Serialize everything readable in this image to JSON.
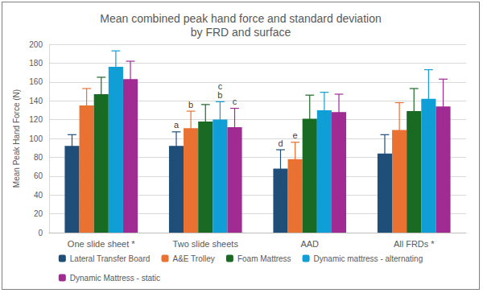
{
  "chart_data": {
    "type": "bar",
    "title": "Mean combined peak hand force and standard deviation\nby FRD and surface",
    "y_label": "Mean Peak Hand Force (N)",
    "categories": [
      "One slide sheet *",
      "Two slide sheets",
      "AAD",
      "All FRDs *"
    ],
    "series": [
      {
        "name": "Lateral Transfer Board",
        "color": "#1f4e79",
        "values": [
          92,
          92,
          68,
          84
        ],
        "errors": [
          12,
          15,
          20,
          20
        ]
      },
      {
        "name": "A&E Trolley",
        "color": "#e97132",
        "values": [
          135,
          111,
          78,
          109
        ],
        "errors": [
          18,
          18,
          18,
          29
        ]
      },
      {
        "name": "Foam Mattress",
        "color": "#196b24",
        "values": [
          147,
          118,
          121,
          129
        ],
        "errors": [
          18,
          18,
          25,
          24
        ]
      },
      {
        "name": "Dynamic mattress - alternating",
        "color": "#0f9ed5",
        "values": [
          176,
          120,
          130,
          142
        ],
        "errors": [
          17,
          19,
          19,
          31
        ]
      },
      {
        "name": "Dynamic Mattress - static",
        "color": "#a02b93",
        "values": [
          163,
          112,
          128,
          134
        ],
        "errors": [
          19,
          20,
          19,
          29
        ]
      }
    ],
    "annotations": [
      {
        "category": "Two slide sheets",
        "series": "Lateral Transfer Board",
        "text": "a"
      },
      {
        "category": "Two slide sheets",
        "series": "A&E Trolley",
        "text": "b"
      },
      {
        "category": "Two slide sheets",
        "series": "Dynamic mattress - alternating",
        "text": "b"
      },
      {
        "category": "Two slide sheets",
        "series": "Dynamic mattress - alternating",
        "text": "c"
      },
      {
        "category": "Two slide sheets",
        "series": "Dynamic Mattress - static",
        "text": "c"
      },
      {
        "category": "AAD",
        "series": "Lateral Transfer Board",
        "text": "d"
      },
      {
        "category": "AAD",
        "series": "A&E Trolley",
        "text": "e"
      }
    ],
    "ylim": [
      0,
      200
    ],
    "yticks": [
      0,
      20,
      40,
      60,
      80,
      100,
      120,
      140,
      160,
      180,
      200
    ],
    "grid": true,
    "legend": "bottom"
  }
}
